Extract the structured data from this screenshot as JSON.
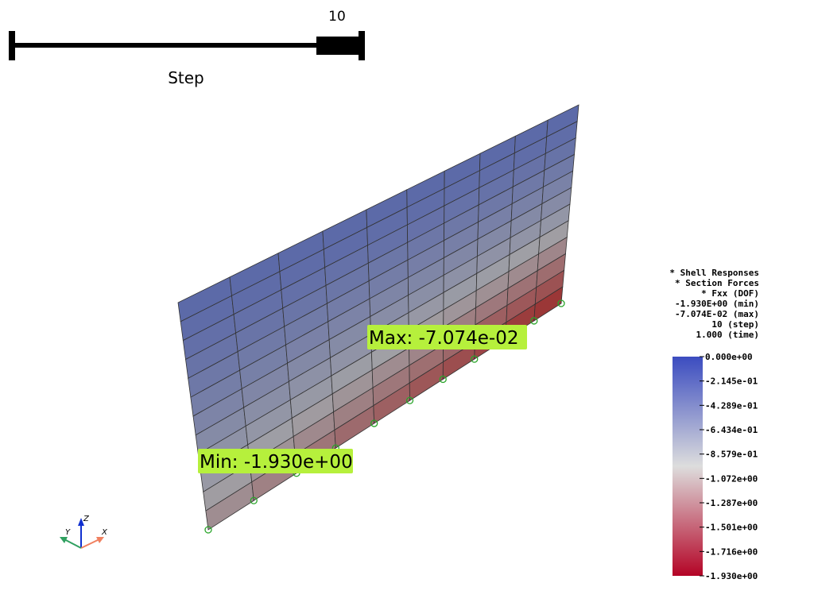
{
  "slider": {
    "value": "10",
    "title": "Step"
  },
  "info": [
    "* Shell Responses",
    "* Section Forces",
    "* Fxx (DOF)",
    "-1.930E+00 (min)",
    "-7.074E-02 (max)",
    "10 (step)",
    "1.000 (time)"
  ],
  "labels": {
    "max": "Max: -7.074e-02",
    "min": "Min: -1.930e+00"
  },
  "colorbar": {
    "ticks": [
      "0.000e+00",
      "-2.145e-01",
      "-4.289e-01",
      "-6.434e-01",
      "-8.579e-01",
      "-1.072e+00",
      "-1.287e+00",
      "-1.501e+00",
      "-1.716e+00",
      "-1.930e+00"
    ]
  },
  "axes": {
    "x": "X",
    "y": "Y",
    "z": "Z"
  }
}
